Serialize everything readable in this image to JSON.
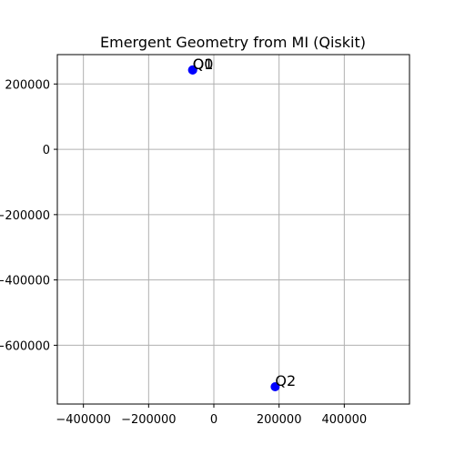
{
  "chart_data": {
    "type": "scatter",
    "title": "Emergent Geometry from MI (Qiskit)",
    "xlabel": "",
    "ylabel": "",
    "xlim": [
      -480000,
      600000
    ],
    "ylim": [
      -780000,
      290000
    ],
    "xticks": [
      -400000,
      -200000,
      0,
      200000,
      400000
    ],
    "xtick_labels": [
      "−400000",
      "−200000",
      "0",
      "200000",
      "400000"
    ],
    "yticks": [
      200000,
      0,
      -200000,
      -400000,
      -600000
    ],
    "ytick_labels": [
      "200000",
      "0",
      "−200000",
      "−400000",
      "−600000"
    ],
    "grid": true,
    "marker_color": "#0000ff",
    "points": [
      {
        "label": "Q0",
        "x": -65000,
        "y": 243000
      },
      {
        "label": "Q1",
        "x": -65000,
        "y": 243000
      },
      {
        "label": "Q2",
        "x": 188000,
        "y": -727000
      }
    ]
  }
}
